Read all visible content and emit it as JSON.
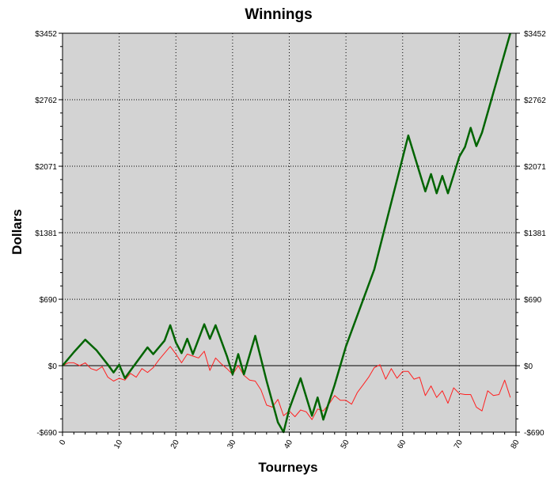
{
  "chart_data": {
    "type": "line",
    "title": "Winnings",
    "xlabel": "Tourneys",
    "ylabel": "Dollars",
    "xlim": [
      0,
      80
    ],
    "ylim": [
      -690,
      3452
    ],
    "x_ticks": [
      0,
      10,
      20,
      30,
      40,
      50,
      60,
      70,
      80
    ],
    "x_tick_labels": [
      "0",
      "10",
      "20",
      "30",
      "40",
      "50",
      "60",
      "70",
      "80"
    ],
    "y_ticks": [
      -690,
      0,
      690,
      1381,
      2071,
      2762,
      3452
    ],
    "y_tick_labels": [
      "-$690",
      "$0",
      "$690",
      "$1381",
      "$2071",
      "$2762",
      "$3452"
    ],
    "grid": true,
    "legend": "none",
    "background_color": "#d3d3d3",
    "series": [
      {
        "color": "#006400",
        "points": [
          [
            0,
            0
          ],
          [
            2,
            140
          ],
          [
            4,
            270
          ],
          [
            6,
            160
          ],
          [
            8,
            10
          ],
          [
            9,
            -70
          ],
          [
            10,
            10
          ],
          [
            11,
            -130
          ],
          [
            12,
            -50
          ],
          [
            15,
            190
          ],
          [
            16,
            120
          ],
          [
            18,
            260
          ],
          [
            19,
            420
          ],
          [
            20,
            240
          ],
          [
            21,
            130
          ],
          [
            22,
            280
          ],
          [
            23,
            120
          ],
          [
            25,
            430
          ],
          [
            26,
            280
          ],
          [
            27,
            420
          ],
          [
            29,
            100
          ],
          [
            30,
            -90
          ],
          [
            31,
            120
          ],
          [
            32,
            -90
          ],
          [
            34,
            310
          ],
          [
            36,
            -160
          ],
          [
            38,
            -590
          ],
          [
            39,
            -690
          ],
          [
            40,
            -450
          ],
          [
            42,
            -130
          ],
          [
            44,
            -520
          ],
          [
            45,
            -330
          ],
          [
            46,
            -560
          ],
          [
            48,
            -200
          ],
          [
            50,
            200
          ],
          [
            55,
            1000
          ],
          [
            61,
            2390
          ],
          [
            64,
            1810
          ],
          [
            65,
            1990
          ],
          [
            66,
            1790
          ],
          [
            67,
            1970
          ],
          [
            68,
            1790
          ],
          [
            70,
            2170
          ],
          [
            71,
            2270
          ],
          [
            72,
            2470
          ],
          [
            73,
            2280
          ],
          [
            74,
            2420
          ],
          [
            79,
            3452
          ]
        ]
      },
      {
        "color": "#ff2020",
        "points": [
          [
            0,
            0
          ],
          [
            1,
            30
          ],
          [
            2,
            30
          ],
          [
            3,
            0
          ],
          [
            4,
            30
          ],
          [
            5,
            -30
          ],
          [
            6,
            -50
          ],
          [
            7,
            -10
          ],
          [
            8,
            -120
          ],
          [
            9,
            -160
          ],
          [
            10,
            -130
          ],
          [
            11,
            -150
          ],
          [
            12,
            -80
          ],
          [
            13,
            -120
          ],
          [
            14,
            -30
          ],
          [
            15,
            -70
          ],
          [
            16,
            -20
          ],
          [
            17,
            60
          ],
          [
            18,
            130
          ],
          [
            19,
            200
          ],
          [
            20,
            120
          ],
          [
            21,
            30
          ],
          [
            22,
            120
          ],
          [
            23,
            100
          ],
          [
            24,
            80
          ],
          [
            25,
            150
          ],
          [
            26,
            -50
          ],
          [
            27,
            80
          ],
          [
            28,
            20
          ],
          [
            29,
            -30
          ],
          [
            30,
            -90
          ],
          [
            31,
            0
          ],
          [
            32,
            -100
          ],
          [
            33,
            -150
          ],
          [
            34,
            -160
          ],
          [
            35,
            -250
          ],
          [
            36,
            -410
          ],
          [
            37,
            -430
          ],
          [
            38,
            -350
          ],
          [
            39,
            -520
          ],
          [
            40,
            -470
          ],
          [
            41,
            -530
          ],
          [
            42,
            -460
          ],
          [
            43,
            -480
          ],
          [
            44,
            -560
          ],
          [
            45,
            -450
          ],
          [
            46,
            -470
          ],
          [
            47,
            -400
          ],
          [
            48,
            -310
          ],
          [
            49,
            -360
          ],
          [
            50,
            -360
          ],
          [
            51,
            -400
          ],
          [
            52,
            -280
          ],
          [
            53,
            -200
          ],
          [
            54,
            -120
          ],
          [
            55,
            -20
          ],
          [
            56,
            10
          ],
          [
            57,
            -140
          ],
          [
            58,
            -30
          ],
          [
            59,
            -130
          ],
          [
            60,
            -60
          ],
          [
            61,
            -60
          ],
          [
            62,
            -140
          ],
          [
            63,
            -120
          ],
          [
            64,
            -310
          ],
          [
            65,
            -210
          ],
          [
            66,
            -330
          ],
          [
            67,
            -260
          ],
          [
            68,
            -390
          ],
          [
            69,
            -230
          ],
          [
            70,
            -290
          ],
          [
            71,
            -300
          ],
          [
            72,
            -300
          ],
          [
            73,
            -430
          ],
          [
            74,
            -470
          ],
          [
            75,
            -260
          ],
          [
            76,
            -310
          ],
          [
            77,
            -300
          ],
          [
            78,
            -150
          ],
          [
            79,
            -330
          ]
        ]
      }
    ]
  }
}
